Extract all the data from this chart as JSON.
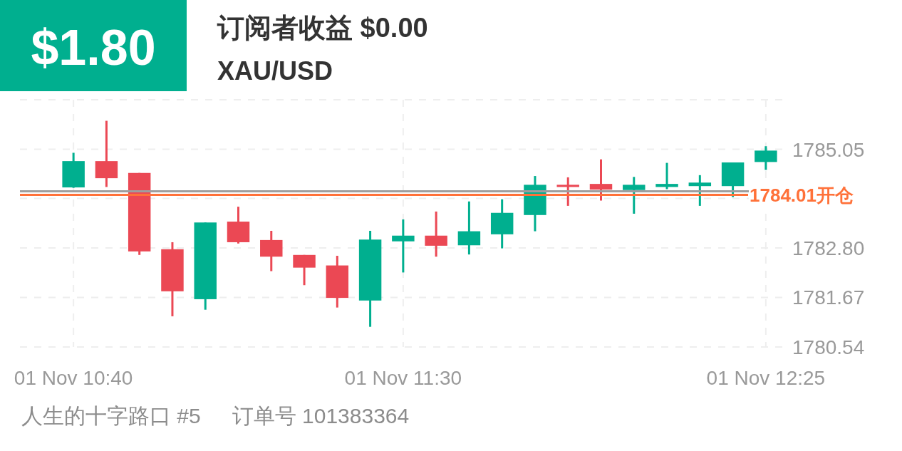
{
  "chart_data": {
    "type": "candlestick",
    "title": "订阅者收益 $0.00",
    "subtitle": "XAU/USD",
    "annotations": [
      "$1.80",
      "人生的十字路口 #5",
      "订单号 101383364"
    ],
    "categories": [
      "01 Nov 10:40",
      null,
      null,
      null,
      null,
      null,
      null,
      null,
      null,
      null,
      "01 Nov 11:30",
      null,
      null,
      null,
      null,
      null,
      null,
      null,
      null,
      null,
      null,
      "01 Nov 12:25"
    ],
    "ohlc": [
      [
        1784.18,
        1784.97,
        1784.17,
        1784.78
      ],
      [
        1784.78,
        1785.7,
        1784.19,
        1784.39
      ],
      [
        1784.51,
        1784.51,
        1782.64,
        1782.72
      ],
      [
        1782.77,
        1782.93,
        1781.24,
        1781.81
      ],
      [
        1781.63,
        1783.38,
        1781.39,
        1783.38
      ],
      [
        1783.4,
        1783.74,
        1782.9,
        1782.93
      ],
      [
        1782.98,
        1783.19,
        1782.27,
        1782.6
      ],
      [
        1782.64,
        1782.64,
        1781.95,
        1782.35
      ],
      [
        1782.4,
        1782.62,
        1781.44,
        1781.66
      ],
      [
        1781.6,
        1783.19,
        1781.0,
        1782.99
      ],
      [
        1782.95,
        1783.45,
        1782.24,
        1783.08
      ],
      [
        1783.08,
        1783.63,
        1782.6,
        1782.85
      ],
      [
        1782.86,
        1783.86,
        1782.65,
        1783.18
      ],
      [
        1783.11,
        1783.91,
        1782.79,
        1783.6
      ],
      [
        1783.55,
        1784.44,
        1783.18,
        1784.24
      ],
      [
        1784.24,
        1784.41,
        1783.76,
        1784.19
      ],
      [
        1784.26,
        1784.82,
        1783.88,
        1784.13
      ],
      [
        1784.12,
        1784.42,
        1783.58,
        1784.24
      ],
      [
        1784.19,
        1784.74,
        1784.14,
        1784.26
      ],
      [
        1784.21,
        1784.46,
        1783.76,
        1784.29
      ],
      [
        1784.21,
        1784.75,
        1783.96,
        1784.75
      ],
      [
        1784.76,
        1785.12,
        1784.58,
        1785.02
      ]
    ],
    "colors": [
      "#00af8f",
      "#eb4854",
      "#eb4854",
      "#eb4854",
      "#00af8f",
      "#eb4854",
      "#eb4854",
      "#eb4854",
      "#eb4854",
      "#00af8f",
      "#00af8f",
      "#eb4854",
      "#00af8f",
      "#00af8f",
      "#00af8f",
      "#eb4854",
      "#eb4854",
      "#00af8f",
      "#00af8f",
      "#00af8f",
      "#00af8f",
      "#00af8f"
    ],
    "ylim": [
      1780.54,
      1786.18
    ],
    "yticks": [
      1780.54,
      1781.67,
      {
        "value": 1782.8,
        "label": "1782.80"
      },
      {
        "value": 1783.93,
        "label": null
      },
      1785.05
    ],
    "ref_lines": [
      {
        "axis": "y",
        "value": 1784.09,
        "color": "#9e9e9e"
      },
      {
        "axis": "y",
        "value": 1784.01,
        "label": "1784.01开仓",
        "color": "#ff7139"
      }
    ],
    "grid": true
  }
}
